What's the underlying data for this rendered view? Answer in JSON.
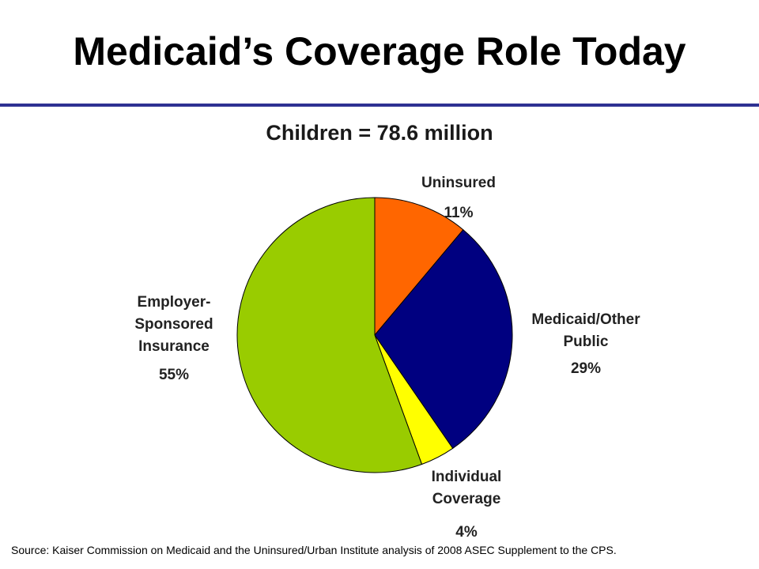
{
  "slide": {
    "title": "Medicaid’s Coverage Role Today",
    "source": "Source: Kaiser Commission on Medicaid and the Uninsured/Urban Institute analysis of 2008 ASEC Supplement to the CPS."
  },
  "chart_data": {
    "type": "pie",
    "title": "Children = 78.6 million",
    "start": "12 o'clock",
    "direction": "clockwise",
    "slices": [
      {
        "name": "Uninsured",
        "value": 11,
        "label_lines": [
          "Uninsured"
        ],
        "percent_label": "11%",
        "color": "#ff6600"
      },
      {
        "name": "Medicaid/Other Public",
        "value": 29,
        "label_lines": [
          "Medicaid/Other",
          "Public"
        ],
        "percent_label": "29%",
        "color": "#000080"
      },
      {
        "name": "Individual Coverage",
        "value": 4,
        "label_lines": [
          "Individual",
          "Coverage"
        ],
        "percent_label": "4%",
        "color": "#ffff00"
      },
      {
        "name": "Employer-Sponsored Insurance",
        "value": 55,
        "label_lines": [
          "Employer-",
          "Sponsored",
          "Insurance"
        ],
        "percent_label": "55%",
        "color": "#99cc00"
      }
    ]
  }
}
